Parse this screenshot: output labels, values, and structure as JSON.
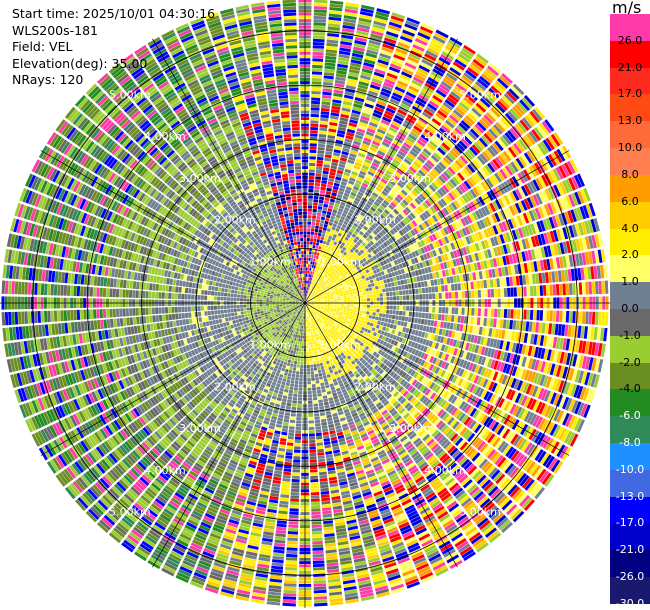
{
  "header": {
    "start_time": "Start time: 2025/10/01 04:30:16",
    "instrument": "WLS200s-181",
    "field": "Field: VEL",
    "elevation": "Elevation(deg): 35.00",
    "nrays": "NRays: 120"
  },
  "colorbar": {
    "unit": "m/s",
    "bins": [
      {
        "label": "26.0",
        "color": "#ff3aa8"
      },
      {
        "label": "21.0",
        "color": "#ff0000"
      },
      {
        "label": "17.0",
        "color": "#ff2a1e"
      },
      {
        "label": "13.0",
        "color": "#ff4a14"
      },
      {
        "label": "10.0",
        "color": "#ff6a3a"
      },
      {
        "label": "8.0",
        "color": "#ff7f50"
      },
      {
        "label": "6.0",
        "color": "#ff9c00"
      },
      {
        "label": "4.0",
        "color": "#ffcc00"
      },
      {
        "label": "2.0",
        "color": "#ffee00"
      },
      {
        "label": "1.0",
        "color": "#ffff66"
      },
      {
        "label": "0.0",
        "color": "#708090"
      },
      {
        "label": "-1.0",
        "color": "#696969"
      },
      {
        "label": "-2.0",
        "color": "#9acd32"
      },
      {
        "label": "-4.0",
        "color": "#6b8e23"
      },
      {
        "label": "-6.0",
        "color": "#228b22"
      },
      {
        "label": "-8.0",
        "color": "#2e8b57"
      },
      {
        "label": "-10.0",
        "color": "#1e90ff"
      },
      {
        "label": "-13.0",
        "color": "#4169e1"
      },
      {
        "label": "-17.0",
        "color": "#0000ff"
      },
      {
        "label": "-21.0",
        "color": "#0000cd"
      },
      {
        "label": "-26.0",
        "color": "#000080"
      },
      {
        "label": "-30.0",
        "color": "#191970"
      }
    ]
  },
  "chart_data": {
    "type": "heatmap",
    "projection": "polar-ppi",
    "field": "VEL",
    "unit": "m/s",
    "nrays": 120,
    "max_range_km": 5.6,
    "range_rings_km": [
      1.0,
      2.0,
      3.0,
      4.0,
      5.0
    ],
    "ring_labels": [
      "1.00km",
      "2.00km",
      "3.00km",
      "4.00km",
      "5.00km"
    ],
    "grid": true,
    "spokes_deg": [
      0,
      30,
      60,
      90,
      120,
      150,
      180,
      210,
      240,
      270,
      300,
      330
    ],
    "color_levels": [
      -30,
      -26,
      -21,
      -17,
      -13,
      -10,
      -8,
      -6,
      -4,
      -2,
      -1,
      0,
      1,
      2,
      4,
      6,
      8,
      10,
      13,
      17,
      21,
      26
    ]
  }
}
